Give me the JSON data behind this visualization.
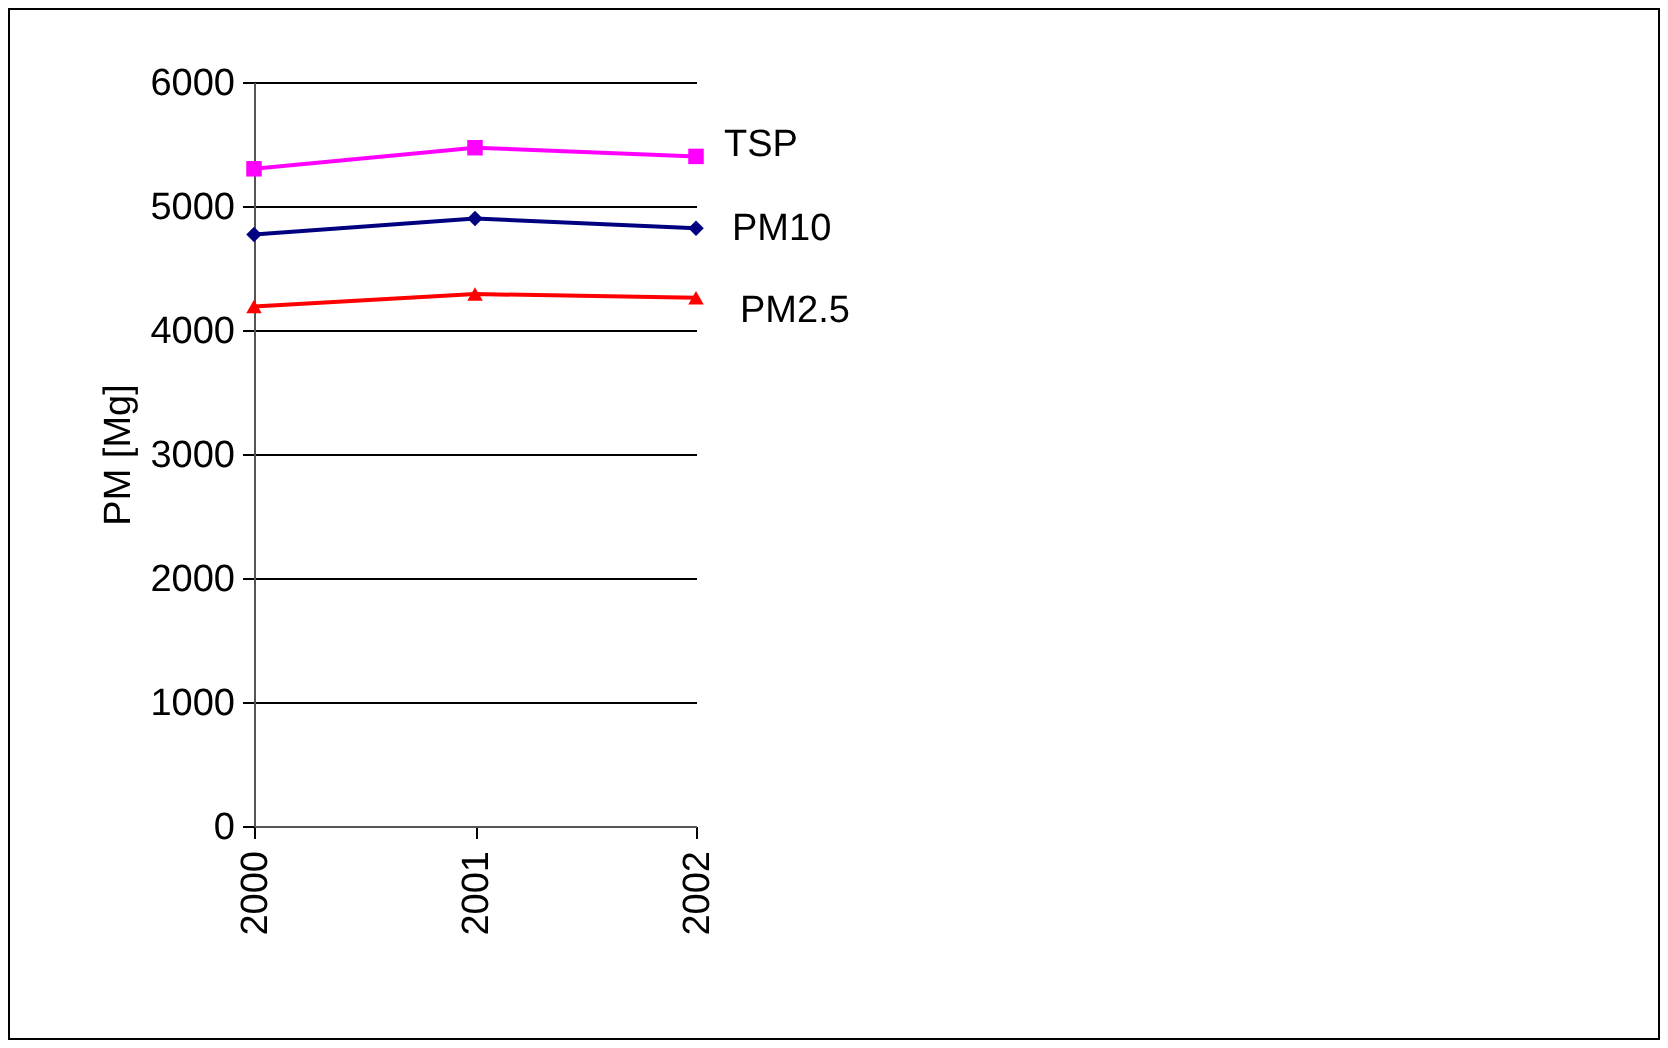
{
  "chart_data": {
    "type": "line",
    "ylabel": "PM [Mg]",
    "categories": [
      "2000",
      "2001",
      "2002"
    ],
    "series": [
      {
        "name": "TSP",
        "color": "#ff00ff",
        "marker": "square",
        "values": [
          5300,
          5470,
          5400
        ]
      },
      {
        "name": "PM10",
        "color": "#000080",
        "marker": "diamond",
        "values": [
          4770,
          4900,
          4820
        ]
      },
      {
        "name": "PM2.5",
        "color": "#ff0000",
        "marker": "triangle",
        "values": [
          4190,
          4290,
          4260
        ]
      }
    ],
    "ylim": [
      0,
      6000
    ],
    "yticks": [
      0,
      1000,
      2000,
      3000,
      4000,
      5000,
      6000
    ],
    "grid": "y",
    "legend": false
  }
}
